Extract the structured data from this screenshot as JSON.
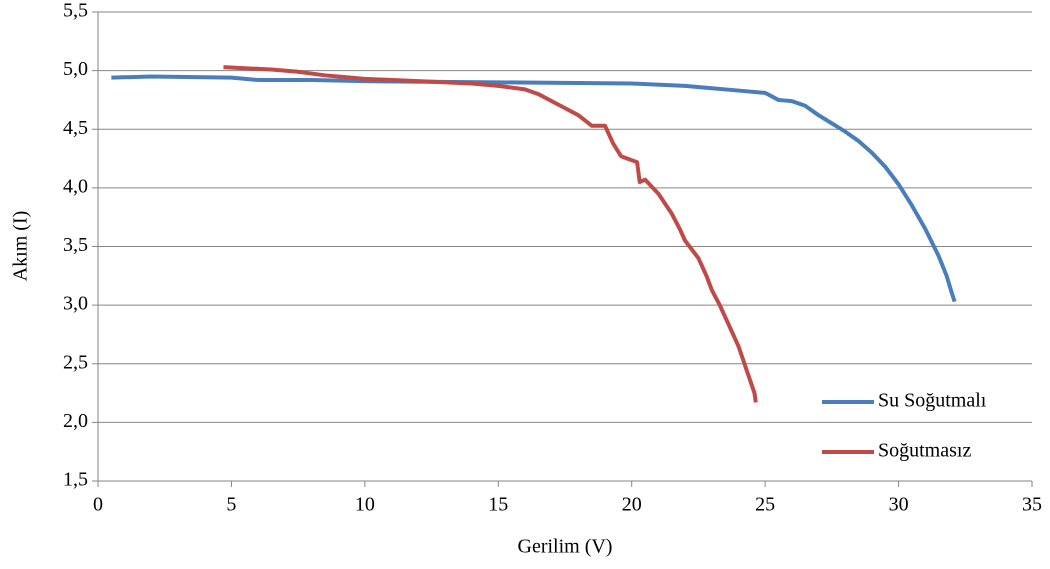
{
  "chart_data": {
    "type": "line",
    "x_label": "Gerilim (V)",
    "y_label": "Akım (I)",
    "xlim": [
      0,
      35
    ],
    "xticks": [
      0,
      5,
      10,
      15,
      20,
      25,
      30,
      35
    ],
    "ylim": [
      1.5,
      5.5
    ],
    "yticks": [
      {
        "value": 1.5,
        "label": "1,5"
      },
      {
        "value": 2.0,
        "label": "2,0"
      },
      {
        "value": 2.5,
        "label": "2,5"
      },
      {
        "value": 3.0,
        "label": "3,0"
      },
      {
        "value": 3.5,
        "label": "3,5"
      },
      {
        "value": 4.0,
        "label": "4,0"
      },
      {
        "value": 4.5,
        "label": "4,5"
      },
      {
        "value": 5.0,
        "label": "5,0"
      },
      {
        "value": 5.5,
        "label": "5,5"
      }
    ],
    "grid": true,
    "legend": "lower right",
    "series": [
      {
        "name": "Su Soğutmalı",
        "color": "#4a7ebb",
        "x": [
          0.5,
          2,
          5,
          6,
          8,
          10,
          15,
          20,
          22,
          23,
          24,
          25,
          25.5,
          26,
          26.5,
          27,
          27.5,
          28,
          28.5,
          29,
          29.5,
          30,
          30.5,
          31,
          31.5,
          31.8,
          32,
          32.1
        ],
        "values": [
          4.94,
          4.95,
          4.94,
          4.92,
          4.92,
          4.91,
          4.9,
          4.89,
          4.87,
          4.85,
          4.83,
          4.81,
          4.75,
          4.74,
          4.7,
          4.62,
          4.55,
          4.48,
          4.4,
          4.3,
          4.18,
          4.03,
          3.85,
          3.65,
          3.42,
          3.25,
          3.1,
          3.03
        ]
      },
      {
        "name": "Soğutmasız",
        "color": "#be4b48",
        "x": [
          4.7,
          5.5,
          6.5,
          7.5,
          8.5,
          10,
          12,
          14,
          15,
          16,
          16.5,
          17,
          17.5,
          18,
          18.5,
          19,
          19.3,
          19.6,
          20.2,
          20.3,
          20.5,
          21,
          21.5,
          21.8,
          22,
          22.5,
          22.8,
          23,
          23.3,
          23.6,
          24,
          24.3,
          24.6,
          24.65
        ],
        "values": [
          5.03,
          5.02,
          5.01,
          4.99,
          4.96,
          4.93,
          4.91,
          4.89,
          4.87,
          4.84,
          4.8,
          4.74,
          4.68,
          4.62,
          4.53,
          4.53,
          4.38,
          4.27,
          4.22,
          4.05,
          4.07,
          3.95,
          3.78,
          3.65,
          3.55,
          3.4,
          3.25,
          3.13,
          3.0,
          2.85,
          2.65,
          2.45,
          2.25,
          2.17
        ]
      }
    ]
  }
}
